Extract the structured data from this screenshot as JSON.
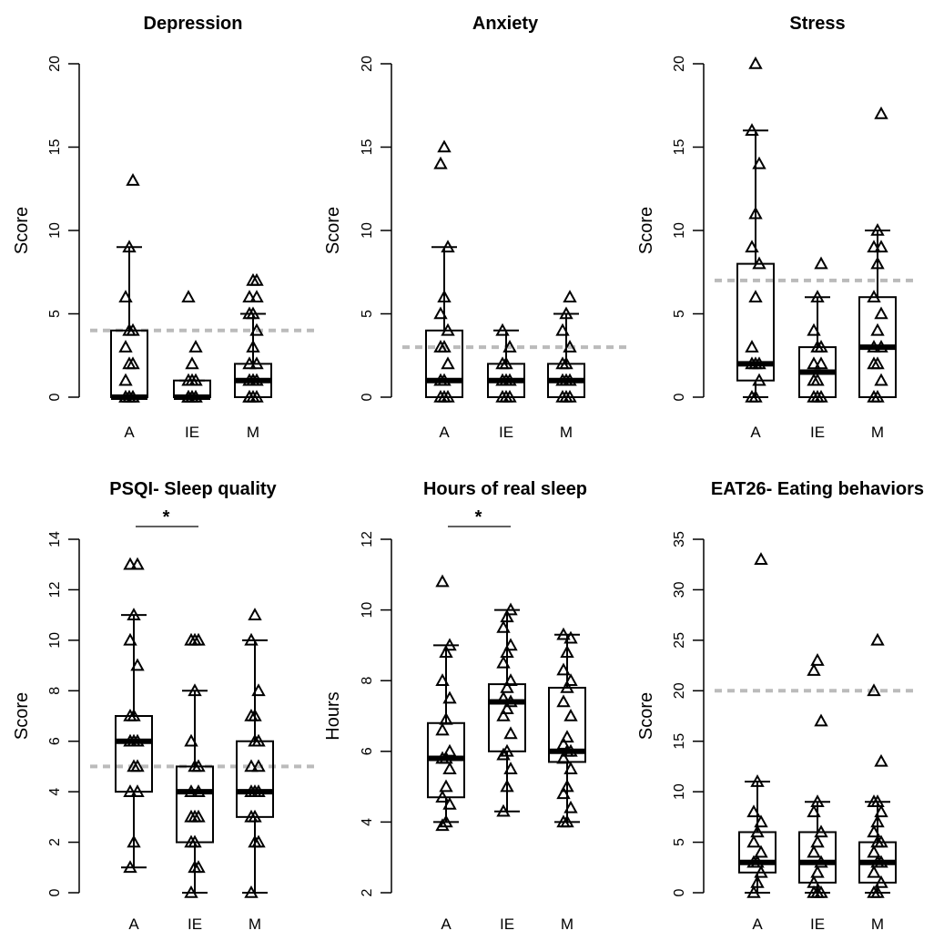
{
  "chart_data": [
    {
      "type": "box",
      "title": "Depression",
      "ylabel": "Score",
      "categories": [
        "A",
        "IE",
        "M"
      ],
      "ylim": [
        0,
        20
      ],
      "yticks": [
        0,
        5,
        10,
        15,
        20
      ],
      "cutoff": 4,
      "boxes": [
        {
          "q1": 0,
          "median": 0,
          "q3": 4,
          "whisker_low": 0,
          "whisker_high": 9
        },
        {
          "q1": 0,
          "median": 0,
          "q3": 1,
          "whisker_low": 0,
          "whisker_high": 1
        },
        {
          "q1": 0,
          "median": 1,
          "q3": 2,
          "whisker_low": 0,
          "whisker_high": 5
        }
      ],
      "points": [
        [
          0,
          0,
          0,
          0,
          0,
          0,
          1,
          2,
          2,
          3,
          4,
          4,
          6,
          9,
          13
        ],
        [
          0,
          0,
          0,
          0,
          0,
          0,
          0,
          1,
          1,
          1,
          2,
          3,
          6
        ],
        [
          0,
          0,
          0,
          0,
          1,
          1,
          1,
          1,
          2,
          2,
          3,
          4,
          5,
          5,
          6,
          6,
          7,
          7
        ]
      ]
    },
    {
      "type": "box",
      "title": "Anxiety",
      "ylabel": "Score",
      "categories": [
        "A",
        "IE",
        "M"
      ],
      "ylim": [
        0,
        20
      ],
      "yticks": [
        0,
        5,
        10,
        15,
        20
      ],
      "cutoff": 3,
      "boxes": [
        {
          "q1": 0,
          "median": 1,
          "q3": 4,
          "whisker_low": 0,
          "whisker_high": 9
        },
        {
          "q1": 0,
          "median": 1,
          "q3": 2,
          "whisker_low": 0,
          "whisker_high": 4
        },
        {
          "q1": 0,
          "median": 1,
          "q3": 2,
          "whisker_low": 0,
          "whisker_high": 5
        }
      ],
      "points": [
        [
          0,
          0,
          0,
          1,
          1,
          2,
          3,
          3,
          4,
          5,
          6,
          9,
          14,
          15
        ],
        [
          0,
          0,
          0,
          1,
          1,
          1,
          2,
          2,
          3,
          4
        ],
        [
          0,
          0,
          0,
          1,
          1,
          1,
          2,
          2,
          3,
          4,
          5,
          6
        ]
      ]
    },
    {
      "type": "box",
      "title": "Stress",
      "ylabel": "Score",
      "categories": [
        "A",
        "IE",
        "M"
      ],
      "ylim": [
        0,
        20
      ],
      "yticks": [
        0,
        5,
        10,
        15,
        20
      ],
      "cutoff": 7,
      "boxes": [
        {
          "q1": 1,
          "median": 2,
          "q3": 8,
          "whisker_low": 0,
          "whisker_high": 16
        },
        {
          "q1": 0,
          "median": 1.5,
          "q3": 3,
          "whisker_low": 0,
          "whisker_high": 6
        },
        {
          "q1": 0,
          "median": 3,
          "q3": 6,
          "whisker_low": 0,
          "whisker_high": 10
        }
      ],
      "points": [
        [
          0,
          0,
          1,
          2,
          2,
          2,
          3,
          6,
          8,
          9,
          11,
          14,
          16,
          20
        ],
        [
          0,
          0,
          0,
          1,
          1,
          2,
          2,
          3,
          3,
          4,
          6,
          8
        ],
        [
          0,
          0,
          1,
          2,
          2,
          3,
          3,
          4,
          5,
          6,
          8,
          9,
          9,
          10,
          17
        ]
      ]
    },
    {
      "type": "box",
      "title": "PSQI- Sleep quality",
      "ylabel": "Score",
      "categories": [
        "A",
        "IE",
        "M"
      ],
      "ylim": [
        0,
        14
      ],
      "yticks": [
        0,
        2,
        4,
        6,
        8,
        10,
        12,
        14
      ],
      "cutoff": 5,
      "significance": "*",
      "boxes": [
        {
          "q1": 4,
          "median": 6,
          "q3": 7,
          "whisker_low": 1,
          "whisker_high": 11
        },
        {
          "q1": 2,
          "median": 4,
          "q3": 5,
          "whisker_low": 0,
          "whisker_high": 8
        },
        {
          "q1": 3,
          "median": 4,
          "q3": 6,
          "whisker_low": 0,
          "whisker_high": 10
        }
      ],
      "points": [
        [
          1,
          2,
          4,
          4,
          5,
          5,
          6,
          6,
          6,
          7,
          7,
          9,
          10,
          11,
          13,
          13
        ],
        [
          0,
          1,
          1,
          2,
          2,
          3,
          3,
          3,
          4,
          4,
          5,
          5,
          6,
          8,
          10,
          10,
          10
        ],
        [
          0,
          2,
          2,
          3,
          3,
          4,
          4,
          4,
          5,
          5,
          6,
          6,
          7,
          7,
          8,
          10,
          11
        ]
      ]
    },
    {
      "type": "box",
      "title": "Hours of real sleep",
      "ylabel": "Hours",
      "categories": [
        "A",
        "IE",
        "M"
      ],
      "ylim": [
        2,
        12
      ],
      "yticks": [
        2,
        4,
        6,
        8,
        10,
        12
      ],
      "significance": "*",
      "boxes": [
        {
          "q1": 4.7,
          "median": 5.8,
          "q3": 6.8,
          "whisker_low": 4,
          "whisker_high": 9
        },
        {
          "q1": 6,
          "median": 7.4,
          "q3": 7.9,
          "whisker_low": 4.3,
          "whisker_high": 10
        },
        {
          "q1": 5.7,
          "median": 6,
          "q3": 7.8,
          "whisker_low": 4,
          "whisker_high": 9.3
        }
      ],
      "points": [
        [
          3.9,
          4,
          4.5,
          4.7,
          5,
          5.5,
          5.8,
          5.8,
          6,
          6.6,
          6.9,
          7.5,
          8,
          8.8,
          9,
          10.8
        ],
        [
          4.3,
          5,
          5.5,
          5.9,
          6,
          6.5,
          7,
          7.2,
          7.4,
          7.5,
          7.8,
          8,
          8.5,
          8.8,
          9,
          9.5,
          9.8,
          10
        ],
        [
          4,
          4,
          4.4,
          4.8,
          5,
          5.5,
          5.8,
          6,
          6,
          6.2,
          6.4,
          7,
          7.4,
          7.8,
          8,
          8.3,
          8.8,
          9.2,
          9.3
        ]
      ]
    },
    {
      "type": "box",
      "title": "EAT26- Eating behaviors",
      "ylabel": "Score",
      "categories": [
        "A",
        "IE",
        "M"
      ],
      "ylim": [
        0,
        35
      ],
      "yticks": [
        0,
        5,
        10,
        15,
        20,
        25,
        30,
        35
      ],
      "cutoff": 20,
      "boxes": [
        {
          "q1": 2,
          "median": 3,
          "q3": 6,
          "whisker_low": 0,
          "whisker_high": 11
        },
        {
          "q1": 1,
          "median": 3,
          "q3": 6,
          "whisker_low": 0,
          "whisker_high": 9
        },
        {
          "q1": 1,
          "median": 3,
          "q3": 5,
          "whisker_low": 0,
          "whisker_high": 9
        }
      ],
      "points": [
        [
          0,
          1,
          2,
          3,
          3,
          4,
          5,
          6,
          7,
          8,
          11,
          33
        ],
        [
          0,
          0,
          0,
          1,
          2,
          3,
          4,
          5,
          6,
          8,
          9,
          17,
          22,
          23
        ],
        [
          0,
          0,
          1,
          2,
          3,
          3,
          4,
          5,
          5,
          6,
          7,
          8,
          9,
          9,
          13,
          20,
          25
        ]
      ]
    }
  ]
}
